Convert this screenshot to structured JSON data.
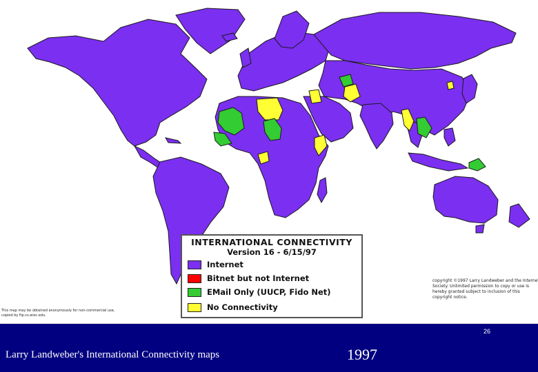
{
  "legend": {
    "title": "INTERNATIONAL CONNECTIVITY",
    "version": "Version 16 - 6/15/97",
    "items": [
      {
        "label": "Internet",
        "color": "#7b2ff0"
      },
      {
        "label": "Bitnet but not Internet",
        "color": "#ff0000"
      },
      {
        "label": "EMail Only (UUCP, Fido Net)",
        "color": "#33cc33"
      },
      {
        "label": "No Connectivity",
        "color": "#ffff33"
      }
    ]
  },
  "notes": {
    "left": "This map may be obtained anonymously for non-commercial use, copied by ftp.cs.wisc.edu.",
    "right": "copyright ©1997 Larry Landweber and the Internet Society. Unlimited permission to copy or use is hereby granted subject to inclusion of this copyright notice."
  },
  "colors": {
    "ocean": "#ffffff",
    "internet": "#7b2ff0",
    "email_only": "#33cc33",
    "no_connectivity": "#ffff33",
    "border": "#1a1a1a",
    "footer_background": "#000080"
  },
  "footer": {
    "caption": "Larry Landweber's International Connectivity maps",
    "year": "1997",
    "page_number": "26"
  }
}
